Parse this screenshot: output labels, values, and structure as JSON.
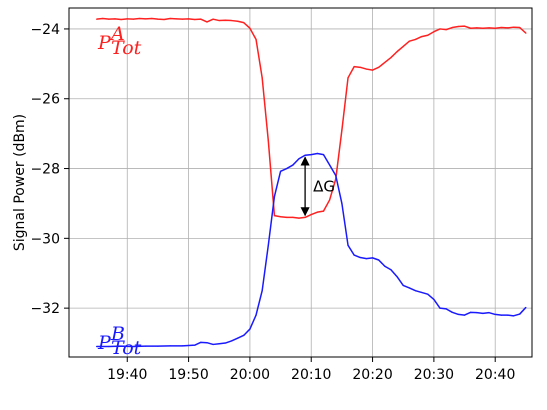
{
  "chart_data": {
    "type": "line",
    "ylabel": "Signal Power (dBm)",
    "xlabel": "",
    "ylim": [
      -33.4,
      -23.4
    ],
    "xlim": [
      "19:30:30",
      "20:46:00"
    ],
    "x_ticks": [
      "19:40",
      "19:50",
      "20:00",
      "20:10",
      "20:20",
      "20:30",
      "20:40"
    ],
    "y_ticks": [
      -24,
      -26,
      -28,
      -30,
      -32
    ],
    "y_tick_labels": [
      "−24",
      "−26",
      "−28",
      "−30",
      "−32"
    ],
    "grid": true,
    "colors": {
      "series_a": "#ff2020",
      "series_b": "#1a1aff",
      "annotation": "#000000"
    },
    "series": [
      {
        "label_main": "P",
        "label_sup": "A",
        "label_sub": "Tot",
        "color": "#ff2020",
        "points": [
          [
            "19:35",
            -23.72
          ],
          [
            "19:36",
            -23.7
          ],
          [
            "19:37",
            -23.72
          ],
          [
            "19:38",
            -23.71
          ],
          [
            "19:39",
            -23.73
          ],
          [
            "19:40",
            -23.71
          ],
          [
            "19:41",
            -23.72
          ],
          [
            "19:42",
            -23.7
          ],
          [
            "19:43",
            -23.71
          ],
          [
            "19:44",
            -23.7
          ],
          [
            "19:45",
            -23.72
          ],
          [
            "19:46",
            -23.73
          ],
          [
            "19:47",
            -23.7
          ],
          [
            "19:48",
            -23.71
          ],
          [
            "19:49",
            -23.72
          ],
          [
            "19:50",
            -23.71
          ],
          [
            "19:51",
            -23.73
          ],
          [
            "19:52",
            -23.72
          ],
          [
            "19:53",
            -23.8
          ],
          [
            "19:54",
            -23.72
          ],
          [
            "19:55",
            -23.76
          ],
          [
            "19:56",
            -23.75
          ],
          [
            "19:57",
            -23.76
          ],
          [
            "19:58",
            -23.78
          ],
          [
            "19:59",
            -23.82
          ],
          [
            "20:00",
            -23.98
          ],
          [
            "20:01",
            -24.3
          ],
          [
            "20:02",
            -25.4
          ],
          [
            "20:03",
            -27.2
          ],
          [
            "20:04",
            -29.35
          ],
          [
            "20:05",
            -29.38
          ],
          [
            "20:06",
            -29.4
          ],
          [
            "20:07",
            -29.4
          ],
          [
            "20:08",
            -29.42
          ],
          [
            "20:09",
            -29.4
          ],
          [
            "20:10",
            -29.32
          ],
          [
            "20:11",
            -29.25
          ],
          [
            "20:12",
            -29.22
          ],
          [
            "20:13",
            -28.9
          ],
          [
            "20:14",
            -28.3
          ],
          [
            "20:15",
            -26.9
          ],
          [
            "20:16",
            -25.4
          ],
          [
            "20:17",
            -25.08
          ],
          [
            "20:18",
            -25.1
          ],
          [
            "20:19",
            -25.15
          ],
          [
            "20:20",
            -25.18
          ],
          [
            "20:21",
            -25.1
          ],
          [
            "20:22",
            -24.96
          ],
          [
            "20:23",
            -24.82
          ],
          [
            "20:24",
            -24.65
          ],
          [
            "20:25",
            -24.5
          ],
          [
            "20:26",
            -24.35
          ],
          [
            "20:27",
            -24.3
          ],
          [
            "20:28",
            -24.22
          ],
          [
            "20:29",
            -24.18
          ],
          [
            "20:30",
            -24.08
          ],
          [
            "20:31",
            -24.0
          ],
          [
            "20:32",
            -24.02
          ],
          [
            "20:33",
            -23.96
          ],
          [
            "20:34",
            -23.93
          ],
          [
            "20:35",
            -23.92
          ],
          [
            "20:36",
            -23.98
          ],
          [
            "20:37",
            -23.97
          ],
          [
            "20:38",
            -23.98
          ],
          [
            "20:39",
            -23.97
          ],
          [
            "20:40",
            -23.98
          ],
          [
            "20:41",
            -23.96
          ],
          [
            "20:42",
            -23.97
          ],
          [
            "20:43",
            -23.95
          ],
          [
            "20:44",
            -23.96
          ],
          [
            "20:45",
            -24.12
          ]
        ]
      },
      {
        "label_main": "P",
        "label_sup": "B",
        "label_sub": "Tot",
        "color": "#1a1aff",
        "points": [
          [
            "19:35",
            -33.1
          ],
          [
            "19:37",
            -33.1
          ],
          [
            "19:39",
            -33.09
          ],
          [
            "19:41",
            -33.1
          ],
          [
            "19:43",
            -33.09
          ],
          [
            "19:45",
            -33.09
          ],
          [
            "19:47",
            -33.08
          ],
          [
            "19:49",
            -33.08
          ],
          [
            "19:51",
            -33.06
          ],
          [
            "19:52",
            -32.98
          ],
          [
            "19:53",
            -32.99
          ],
          [
            "19:54",
            -33.04
          ],
          [
            "19:55",
            -33.02
          ],
          [
            "19:56",
            -33.0
          ],
          [
            "19:57",
            -32.94
          ],
          [
            "19:58",
            -32.86
          ],
          [
            "19:59",
            -32.78
          ],
          [
            "20:00",
            -32.6
          ],
          [
            "20:01",
            -32.2
          ],
          [
            "20:02",
            -31.5
          ],
          [
            "20:03",
            -30.2
          ],
          [
            "20:04",
            -28.8
          ],
          [
            "20:05",
            -28.08
          ],
          [
            "20:06",
            -28.0
          ],
          [
            "20:07",
            -27.9
          ],
          [
            "20:08",
            -27.72
          ],
          [
            "20:09",
            -27.62
          ],
          [
            "20:10",
            -27.6
          ],
          [
            "20:11",
            -27.57
          ],
          [
            "20:12",
            -27.6
          ],
          [
            "20:13",
            -27.9
          ],
          [
            "20:14",
            -28.2
          ],
          [
            "20:15",
            -29.0
          ],
          [
            "20:16",
            -30.2
          ],
          [
            "20:17",
            -30.48
          ],
          [
            "20:18",
            -30.55
          ],
          [
            "20:19",
            -30.58
          ],
          [
            "20:20",
            -30.56
          ],
          [
            "20:21",
            -30.62
          ],
          [
            "20:22",
            -30.8
          ],
          [
            "20:23",
            -30.9
          ],
          [
            "20:24",
            -31.1
          ],
          [
            "20:25",
            -31.35
          ],
          [
            "20:26",
            -31.42
          ],
          [
            "20:27",
            -31.5
          ],
          [
            "20:28",
            -31.55
          ],
          [
            "20:29",
            -31.6
          ],
          [
            "20:30",
            -31.75
          ],
          [
            "20:31",
            -32.0
          ],
          [
            "20:32",
            -32.02
          ],
          [
            "20:33",
            -32.12
          ],
          [
            "20:34",
            -32.18
          ],
          [
            "20:35",
            -32.2
          ],
          [
            "20:36",
            -32.12
          ],
          [
            "20:37",
            -32.13
          ],
          [
            "20:38",
            -32.15
          ],
          [
            "20:39",
            -32.13
          ],
          [
            "20:40",
            -32.18
          ],
          [
            "20:41",
            -32.2
          ],
          [
            "20:42",
            -32.2
          ],
          [
            "20:43",
            -32.22
          ],
          [
            "20:44",
            -32.17
          ],
          [
            "20:45",
            -31.98
          ]
        ]
      }
    ],
    "annotations": [
      {
        "text": "ΔG",
        "type": "double-arrow",
        "x": "20:09",
        "y_from": -27.62,
        "y_to": -29.4
      }
    ]
  }
}
